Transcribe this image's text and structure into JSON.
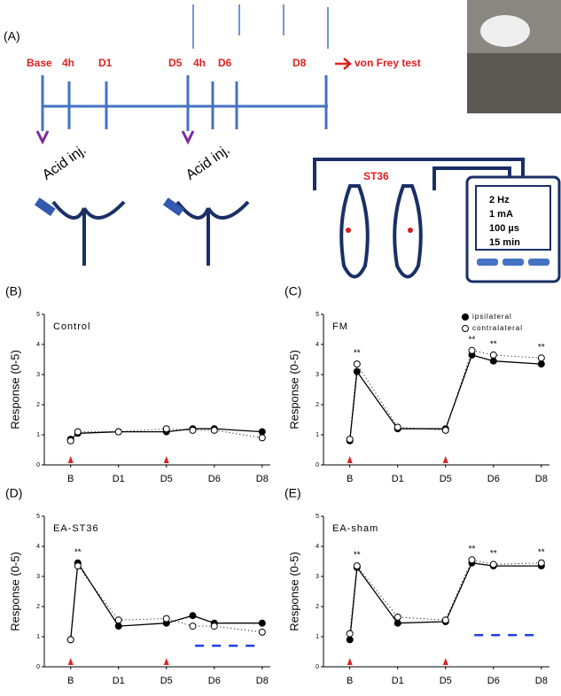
{
  "figure_a": {
    "panel": "(A)",
    "timeline": [
      "Base",
      "4h",
      "D1",
      "D5",
      "4h",
      "D6",
      "D8"
    ],
    "test": "von Frey test",
    "injection": [
      "Acid inj.",
      "Acid inj."
    ],
    "acupoint": "ST36",
    "stimulator": [
      "2 Hz",
      "1 mA",
      "100 µs",
      "15 min"
    ]
  },
  "chart_data": [
    {
      "type": "line",
      "panel": "(B)",
      "title": "Control",
      "y_label": "Response (0-5)",
      "x": [
        0,
        0.15,
        1,
        2,
        2.55,
        3,
        4
      ],
      "xlim": [
        -0.55,
        4.17
      ],
      "xticks": [
        {
          "value": 0,
          "label": "B"
        },
        {
          "value": 1,
          "label": "D1"
        },
        {
          "value": 2,
          "label": "D5"
        },
        {
          "value": 3,
          "label": "D6"
        },
        {
          "value": 4,
          "label": "D8"
        }
      ],
      "ylim": [
        0,
        5
      ],
      "yticks": [
        0,
        1,
        2,
        3,
        4,
        5
      ],
      "series": [
        {
          "name": "ipsilateral",
          "color": "#000000",
          "marker": "filled",
          "values": [
            0.85,
            1.05,
            1.1,
            1.1,
            1.2,
            1.2,
            1.1
          ]
        },
        {
          "name": "contralateral",
          "color": "#000000",
          "marker": "open",
          "values": [
            0.8,
            1.1,
            1.1,
            1.2,
            1.15,
            1.15,
            0.9
          ]
        }
      ],
      "injections": [
        0,
        2
      ],
      "injection_color": "#dd2222"
    },
    {
      "type": "line",
      "panel": "(C)",
      "title": "FM",
      "y_label": "Response (0-5)",
      "x": [
        0,
        0.15,
        1,
        2,
        2.55,
        3,
        4
      ],
      "xlim": [
        -0.55,
        4.17
      ],
      "xticks": [
        {
          "value": 0,
          "label": "B"
        },
        {
          "value": 1,
          "label": "D1"
        },
        {
          "value": 2,
          "label": "D5"
        },
        {
          "value": 3,
          "label": "D6"
        },
        {
          "value": 4,
          "label": "D8"
        }
      ],
      "ylim": [
        0,
        5
      ],
      "yticks": [
        0,
        1,
        2,
        3,
        4,
        5
      ],
      "series": [
        {
          "name": "ipsilateral",
          "color": "#000000",
          "marker": "filled",
          "values": [
            0.8,
            3.1,
            1.2,
            1.2,
            3.65,
            3.45,
            3.35
          ]
        },
        {
          "name": "contralateral",
          "color": "#000000",
          "marker": "open",
          "values": [
            0.85,
            3.35,
            1.25,
            1.15,
            3.8,
            3.65,
            3.55
          ]
        }
      ],
      "significance": [
        null,
        "**",
        null,
        null,
        "**",
        "**",
        "**"
      ],
      "legend": "upper right",
      "injections": [
        0,
        2
      ],
      "injection_color": "#dd2222"
    },
    {
      "type": "line",
      "panel": "(D)",
      "title": "EA-ST36",
      "y_label": "Response (0-5)",
      "x": [
        0,
        0.15,
        1,
        2,
        2.55,
        3,
        4
      ],
      "xlim": [
        -0.55,
        4.17
      ],
      "xticks": [
        {
          "value": 0,
          "label": "B"
        },
        {
          "value": 1,
          "label": "D1"
        },
        {
          "value": 2,
          "label": "D5"
        },
        {
          "value": 3,
          "label": "D6"
        },
        {
          "value": 4,
          "label": "D8"
        }
      ],
      "ylim": [
        0,
        5
      ],
      "yticks": [
        0,
        1,
        2,
        3,
        4,
        5
      ],
      "series": [
        {
          "name": "ipsilateral",
          "color": "#000000",
          "marker": "filled",
          "values": [
            0.9,
            3.45,
            1.35,
            1.45,
            1.7,
            1.45,
            1.45
          ]
        },
        {
          "name": "contralateral",
          "color": "#000000",
          "marker": "open",
          "values": [
            0.9,
            3.35,
            1.55,
            1.6,
            1.35,
            1.35,
            1.15
          ]
        }
      ],
      "significance": [
        null,
        "**",
        null,
        null,
        null,
        null,
        null
      ],
      "ea_line": {
        "x": [
          2.6,
          4
        ],
        "y": 0.7,
        "color": "#1f3fe0"
      },
      "injections": [
        0,
        2
      ],
      "injection_color": "#dd2222"
    },
    {
      "type": "line",
      "panel": "(E)",
      "title": "EA-sham",
      "y_label": "Response (0-5)",
      "x": [
        0,
        0.15,
        1,
        2,
        2.55,
        3,
        4
      ],
      "xlim": [
        -0.55,
        4.17
      ],
      "xticks": [
        {
          "value": 0,
          "label": "B"
        },
        {
          "value": 1,
          "label": "D1"
        },
        {
          "value": 2,
          "label": "D5"
        },
        {
          "value": 3,
          "label": "D6"
        },
        {
          "value": 4,
          "label": "D8"
        }
      ],
      "ylim": [
        0,
        5
      ],
      "yticks": [
        0,
        1,
        2,
        3,
        4,
        5
      ],
      "series": [
        {
          "name": "ipsilateral",
          "color": "#000000",
          "marker": "filled",
          "values": [
            0.9,
            3.3,
            1.45,
            1.5,
            3.45,
            3.35,
            3.35
          ]
        },
        {
          "name": "contralateral",
          "color": "#000000",
          "marker": "open",
          "values": [
            1.1,
            3.35,
            1.65,
            1.55,
            3.55,
            3.4,
            3.45
          ]
        }
      ],
      "significance": [
        null,
        "**",
        null,
        null,
        "**",
        "**",
        "**"
      ],
      "ea_line": {
        "x": [
          2.6,
          4
        ],
        "y": 1.05,
        "color": "#1f3fe0"
      },
      "injections": [
        0,
        2
      ],
      "injection_color": "#dd2222"
    }
  ]
}
